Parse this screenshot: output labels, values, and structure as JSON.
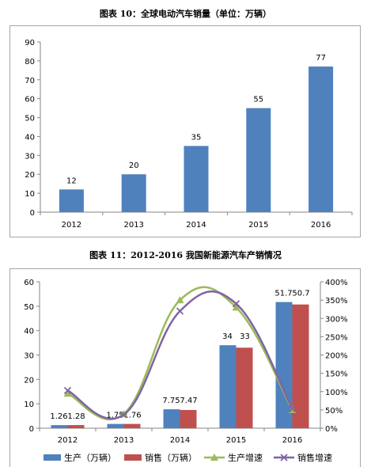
{
  "captions": {
    "chart1": "图表 10：全球电动汽车销量（单位：万辆）",
    "chart2": "图表 11：2012-2016 我国新能源汽车产销情况"
  },
  "chart_data": [
    {
      "type": "bar",
      "title": "图表 10：全球电动汽车销量（单位：万辆）",
      "categories": [
        "2012",
        "2013",
        "2014",
        "2015",
        "2016"
      ],
      "values": [
        12,
        20,
        35,
        55,
        77
      ],
      "data_labels": [
        "12",
        "20",
        "35",
        "55",
        "77"
      ],
      "ylim": [
        0,
        90
      ],
      "yticks": [
        "0",
        "10",
        "20",
        "30",
        "40",
        "50",
        "60",
        "70",
        "80",
        "90"
      ],
      "grid": false,
      "legend": "none",
      "color": "#4f81bd"
    },
    {
      "type": "bar",
      "title": "图表 11：2012-2016 我国新能源汽车产销情况",
      "categories": [
        "2012",
        "2013",
        "2014",
        "2015",
        "2016"
      ],
      "ylim": [
        0,
        60
      ],
      "yticks": [
        "0",
        "10",
        "20",
        "30",
        "40",
        "50",
        "60"
      ],
      "y2lim": [
        0,
        400
      ],
      "y2ticks": [
        "0%",
        "50%",
        "100%",
        "150%",
        "200%",
        "250%",
        "300%",
        "350%",
        "400%"
      ],
      "bar_series": [
        {
          "name": "生产（万辆）",
          "values": [
            1.26,
            1.75,
            7.75,
            34,
            51.7
          ],
          "labels": [
            "1.26",
            "1.75",
            "7.75",
            "34",
            "51.7"
          ],
          "color": "#4f81bd"
        },
        {
          "name": "销售（万辆）",
          "values": [
            1.28,
            1.76,
            7.47,
            33,
            50.7
          ],
          "labels": [
            "1.28",
            "1.76",
            "7.47",
            "33",
            "50.7"
          ],
          "color": "#c0504d"
        }
      ],
      "line_series": [
        {
          "name": "生产增速",
          "axis": "right",
          "values": [
            95,
            39,
            350,
            330,
            50
          ],
          "color": "#9bbb59",
          "marker": "triangle"
        },
        {
          "name": "销售增速",
          "axis": "right",
          "values": [
            103,
            37,
            320,
            340,
            53
          ],
          "color": "#8064a2",
          "marker": "x"
        }
      ],
      "legend": "bottom",
      "grid": false
    }
  ]
}
